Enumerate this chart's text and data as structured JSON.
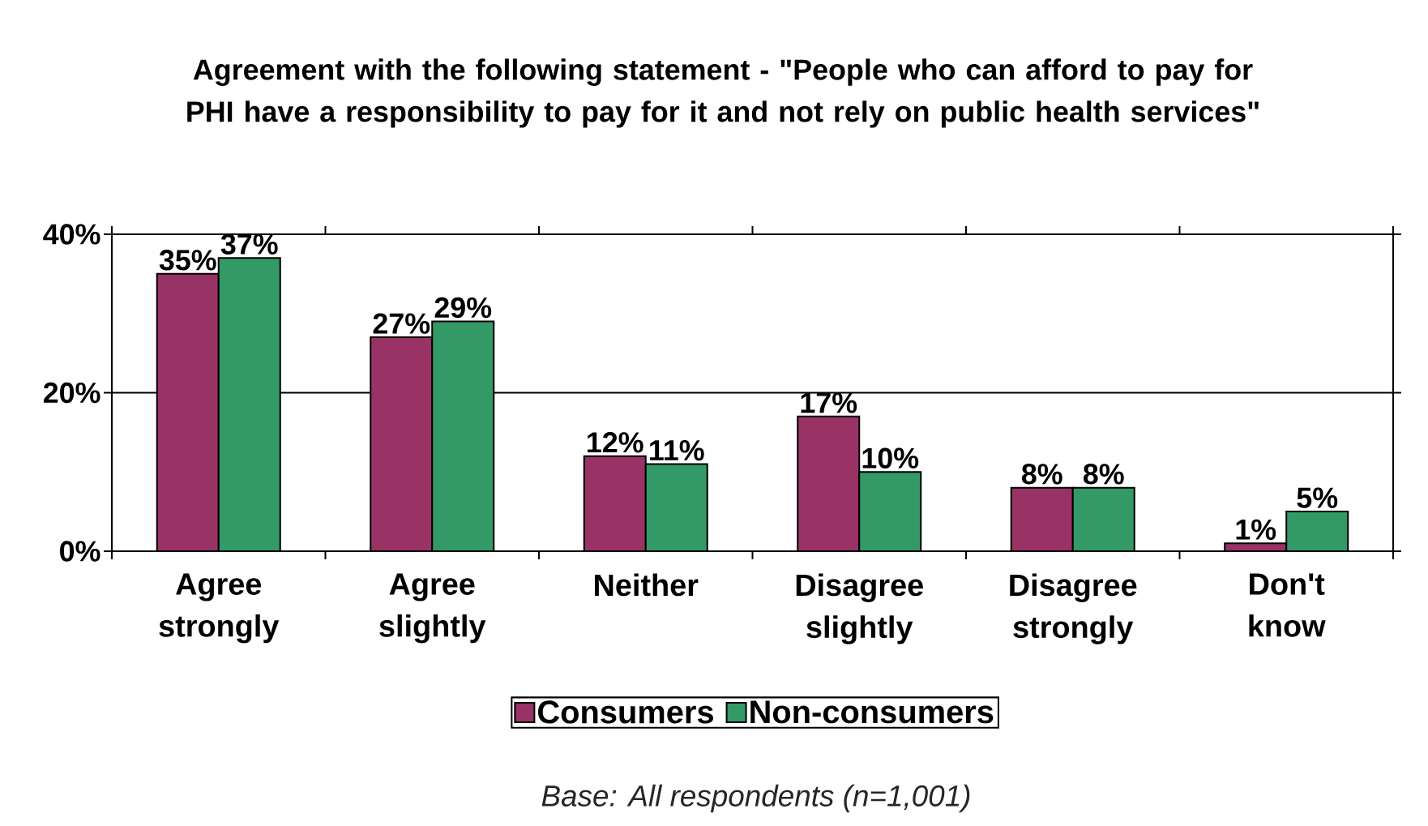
{
  "chart_data": {
    "type": "bar",
    "title": "Agreement with the following statement - \"People who can afford to pay for PHI have a responsibility to pay for it and not rely on public health services\"",
    "categories": [
      "Agree strongly",
      "Agree slightly",
      "Neither",
      "Disagree slightly",
      "Disagree strongly",
      "Don't know"
    ],
    "series": [
      {
        "name": "Consumers",
        "color": "#993366",
        "values": [
          35,
          27,
          12,
          17,
          8,
          1
        ],
        "value_labels": [
          "35%",
          "27%",
          "12%",
          "17%",
          "8%",
          "1%"
        ]
      },
      {
        "name": "Non-consumers",
        "color": "#339966",
        "values": [
          37,
          29,
          11,
          10,
          8,
          5
        ],
        "value_labels": [
          "37%",
          "29%",
          "11%",
          "10%",
          "8%",
          "5%"
        ]
      }
    ],
    "ylim": [
      0,
      40
    ],
    "yticks": [
      {
        "value": 0,
        "label": "0%"
      },
      {
        "value": 20,
        "label": "20%"
      },
      {
        "value": 40,
        "label": "40%"
      }
    ],
    "grid": "y",
    "legend": "bottom",
    "annotations": [
      "Base: All respondents  (n=1,001)"
    ]
  }
}
